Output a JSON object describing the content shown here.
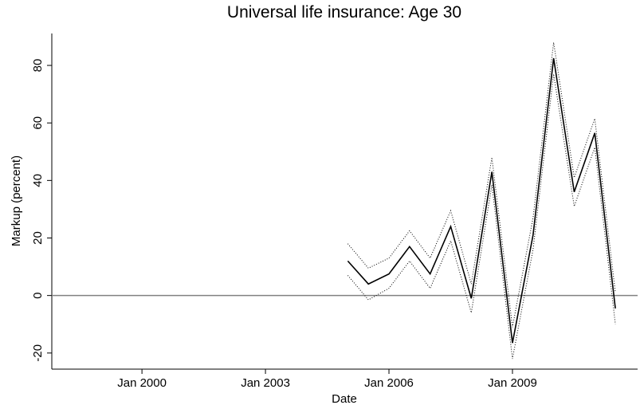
{
  "chart_data": {
    "type": "line",
    "title": "Universal life insurance: Age 30",
    "x_label": "Date",
    "y_label": "Markup (percent)",
    "x": [
      2005,
      2005.5,
      2006,
      2006.5,
      2007,
      2007.5,
      2008,
      2008.5,
      2009,
      2009.5,
      2010,
      2010.5,
      2011,
      2011.5
    ],
    "series": [
      {
        "color": "#000000",
        "dash": "solid",
        "values": [
          12,
          4,
          7.5,
          17,
          7.5,
          24,
          -1,
          43,
          -16.5,
          21,
          82.5,
          36,
          56.5,
          -4.5
        ]
      },
      {
        "color": "#000000",
        "dash": "dotted",
        "values": [
          18,
          9.5,
          13,
          22.5,
          13,
          29.5,
          4,
          48,
          -11,
          27,
          88,
          41,
          61.5,
          1
        ]
      },
      {
        "color": "#000000",
        "dash": "dotted",
        "values": [
          7,
          -1.5,
          2.5,
          12,
          2.5,
          19,
          -6,
          38.5,
          -22,
          16,
          77,
          31,
          51.5,
          -10
        ]
      }
    ],
    "reference_line": {
      "value": 0,
      "color": "#808080"
    },
    "xlim": [
      1997.81,
      2012.04
    ],
    "xticks": [
      {
        "value": 2000,
        "label": "Jan 2000"
      },
      {
        "value": 2003,
        "label": "Jan 2003"
      },
      {
        "value": 2006,
        "label": "Jan 2006"
      },
      {
        "value": 2009,
        "label": "Jan 2009"
      }
    ],
    "ylim": [
      -25.6,
      91.1
    ],
    "yticks": [
      -20,
      0,
      20,
      40,
      60,
      80
    ]
  }
}
